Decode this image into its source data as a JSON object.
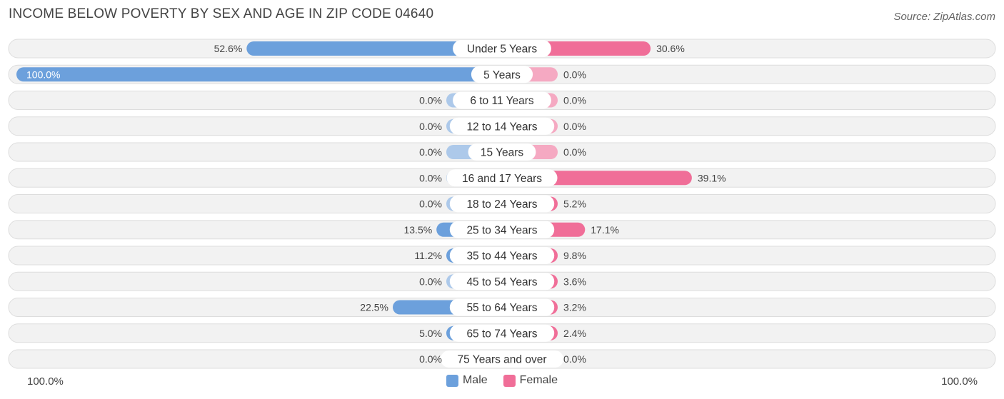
{
  "title": "INCOME BELOW POVERTY BY SEX AND AGE IN ZIP CODE 04640",
  "source": "Source: ZipAtlas.com",
  "axis": {
    "left_label": "100.0%",
    "right_label": "100.0%"
  },
  "legend": [
    {
      "name": "Male",
      "color": "#6ca0dc"
    },
    {
      "name": "Female",
      "color": "#f06e98"
    }
  ],
  "colors": {
    "male_strong": "#6ca0dc",
    "male_light": "#adc9ea",
    "female_strong": "#f06e98",
    "female_light": "#f5a9c2",
    "row_bg": "#f2f2f2",
    "row_border": "#dddddd"
  },
  "chart_data": {
    "type": "bar",
    "orientation": "horizontal-diverging",
    "title": "INCOME BELOW POVERTY BY SEX AND AGE IN ZIP CODE 04640",
    "xlim": [
      -100,
      100
    ],
    "categories": [
      "Under 5 Years",
      "5 Years",
      "6 to 11 Years",
      "12 to 14 Years",
      "15 Years",
      "16 and 17 Years",
      "18 to 24 Years",
      "25 to 34 Years",
      "35 to 44 Years",
      "45 to 54 Years",
      "55 to 64 Years",
      "65 to 74 Years",
      "75 Years and over"
    ],
    "series": [
      {
        "name": "Male",
        "values": [
          52.6,
          100.0,
          0.0,
          0.0,
          0.0,
          0.0,
          0.0,
          13.5,
          11.2,
          0.0,
          22.5,
          5.0,
          0.0
        ],
        "labels": [
          "52.6%",
          "100.0%",
          "0.0%",
          "0.0%",
          "0.0%",
          "0.0%",
          "0.0%",
          "13.5%",
          "11.2%",
          "0.0%",
          "22.5%",
          "5.0%",
          "0.0%"
        ]
      },
      {
        "name": "Female",
        "values": [
          30.6,
          0.0,
          0.0,
          0.0,
          0.0,
          39.1,
          5.2,
          17.1,
          9.8,
          3.6,
          3.2,
          2.4,
          0.0
        ],
        "labels": [
          "30.6%",
          "0.0%",
          "0.0%",
          "0.0%",
          "0.0%",
          "39.1%",
          "5.2%",
          "17.1%",
          "9.8%",
          "3.6%",
          "3.2%",
          "2.4%",
          "0.0%"
        ]
      }
    ],
    "legend_position": "bottom-center"
  }
}
